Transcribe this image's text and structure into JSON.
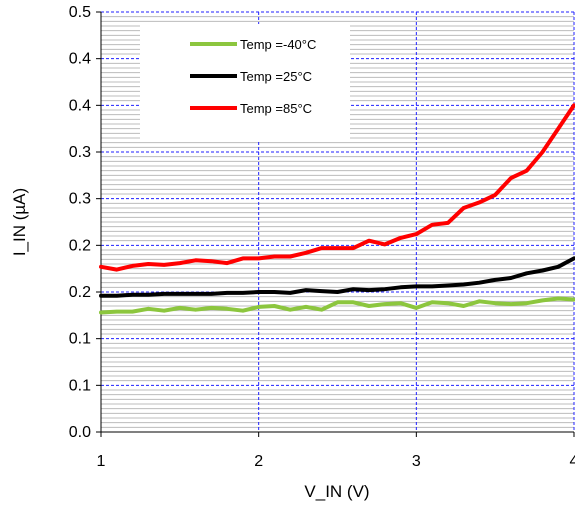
{
  "chart_data": {
    "type": "line",
    "title": "",
    "xlabel": "V_IN (V)",
    "ylabel": "I_IN (µA)",
    "xlim": [
      1,
      4
    ],
    "ylim": [
      0,
      0.45
    ],
    "x_ticks": [
      1,
      2,
      3,
      4
    ],
    "x_tick_labels": [
      "1",
      "2",
      "3",
      "4"
    ],
    "y_ticks": [
      0,
      0.05,
      0.1,
      0.15,
      0.2,
      0.25,
      0.3,
      0.35,
      0.4,
      0.45
    ],
    "y_tick_labels": [
      "0.0",
      "0.1",
      "0.1",
      "0.2",
      "0.2",
      "0.3",
      "0.3",
      "0.4",
      "0.4",
      "0.5"
    ],
    "grid": true,
    "legend_position": "top-left",
    "colors": {
      "grid_minor": "#bcbcbc",
      "grid_major": "#2222ff",
      "axis": "#000000"
    },
    "x": [
      1.0,
      1.1,
      1.2,
      1.3,
      1.4,
      1.5,
      1.6,
      1.7,
      1.8,
      1.9,
      2.0,
      2.1,
      2.2,
      2.3,
      2.4,
      2.5,
      2.6,
      2.7,
      2.8,
      2.9,
      3.0,
      3.1,
      3.2,
      3.3,
      3.4,
      3.5,
      3.6,
      3.7,
      3.8,
      3.9,
      4.0
    ],
    "series": [
      {
        "name": "Temp =-40°C",
        "color": "#8cc63e",
        "values": [
          0.128,
          0.129,
          0.129,
          0.132,
          0.13,
          0.133,
          0.131,
          0.133,
          0.132,
          0.13,
          0.134,
          0.135,
          0.131,
          0.134,
          0.131,
          0.139,
          0.139,
          0.135,
          0.137,
          0.138,
          0.133,
          0.139,
          0.138,
          0.135,
          0.14,
          0.138,
          0.137,
          0.138,
          0.141,
          0.143,
          0.142
        ]
      },
      {
        "name": "Temp =25°C",
        "color": "#000000",
        "values": [
          0.146,
          0.146,
          0.147,
          0.147,
          0.148,
          0.148,
          0.148,
          0.148,
          0.149,
          0.149,
          0.15,
          0.15,
          0.149,
          0.152,
          0.151,
          0.15,
          0.153,
          0.152,
          0.153,
          0.155,
          0.156,
          0.156,
          0.157,
          0.158,
          0.16,
          0.163,
          0.165,
          0.17,
          0.173,
          0.177,
          0.186
        ]
      },
      {
        "name": "Temp =85°C",
        "color": "#ff0000",
        "values": [
          0.177,
          0.174,
          0.178,
          0.18,
          0.179,
          0.181,
          0.184,
          0.183,
          0.181,
          0.186,
          0.186,
          0.188,
          0.188,
          0.192,
          0.197,
          0.197,
          0.197,
          0.205,
          0.201,
          0.208,
          0.212,
          0.222,
          0.224,
          0.24,
          0.246,
          0.254,
          0.272,
          0.28,
          0.3,
          0.325,
          0.35
        ]
      }
    ]
  }
}
